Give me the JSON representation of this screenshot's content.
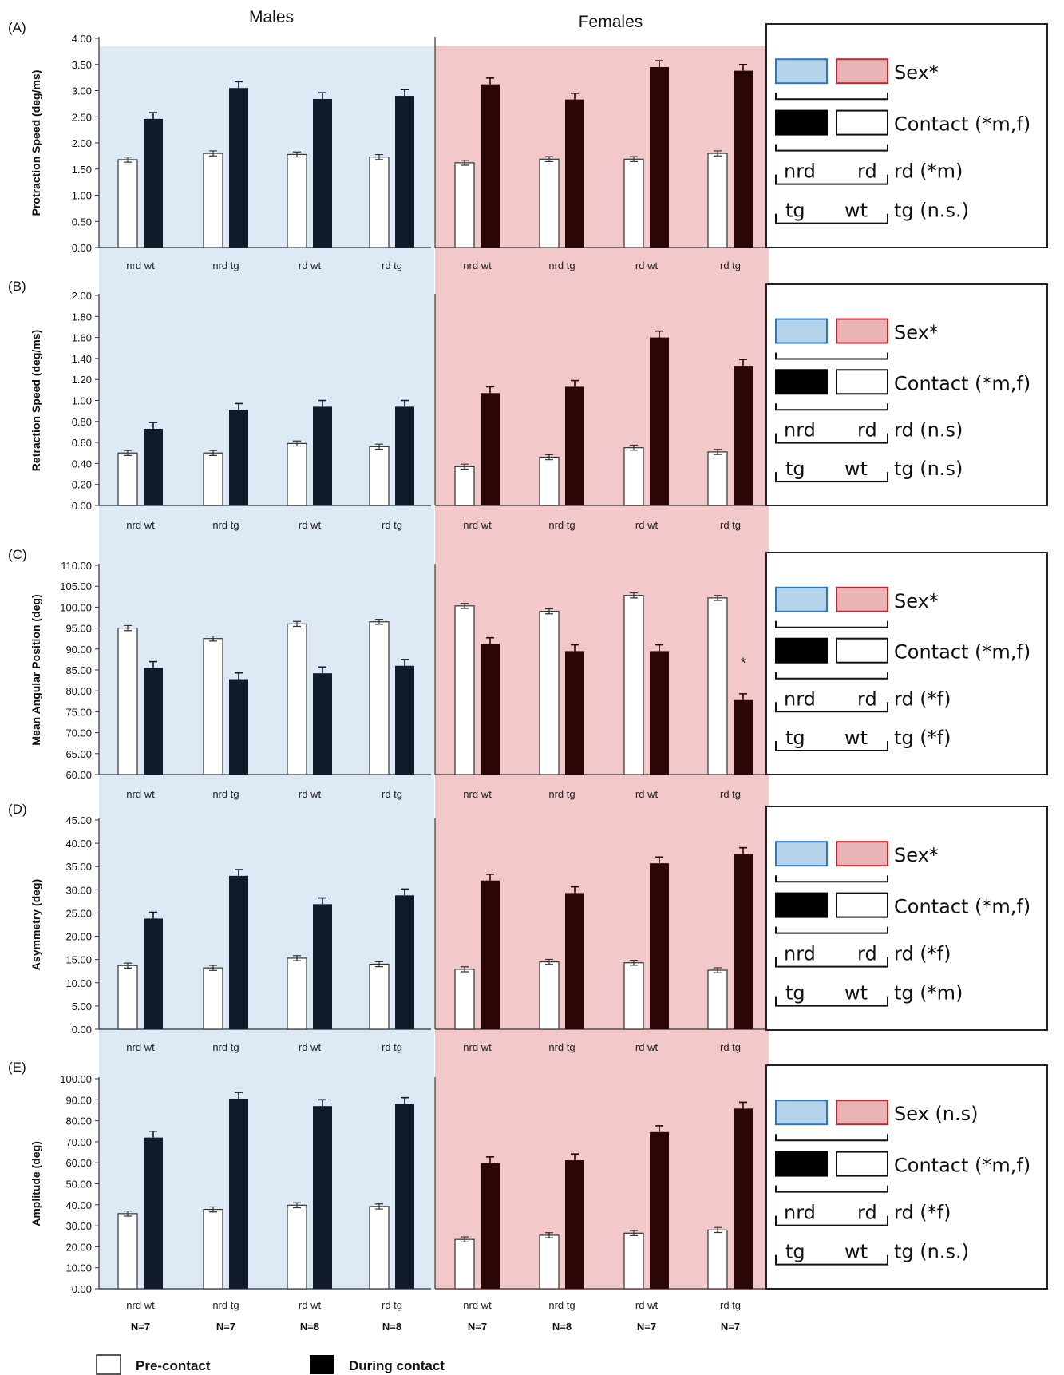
{
  "figure": {
    "column_headers": [
      "Males",
      "Females"
    ],
    "groups": [
      "nrd wt",
      "nrd tg",
      "rd wt",
      "rd tg"
    ],
    "n_males": [
      "N=7",
      "N=7",
      "N=8",
      "N=8"
    ],
    "n_females": [
      "N=7",
      "N=8",
      "N=7",
      "N=7"
    ],
    "legend": [
      "Pre-contact",
      "During contact"
    ],
    "colors": {
      "male_bg": "#dde9f5",
      "female_bg": "#f2c8ca",
      "male_bar": "#101a2b",
      "female_bar": "#2a0606",
      "sex_male_box_fill": "#b6d3ec",
      "sex_male_box_stroke": "#2b78c0",
      "sex_female_box_fill": "#eab3b6",
      "sex_female_box_stroke": "#c0262e"
    }
  },
  "chart_data": [
    {
      "panel": "(A)",
      "type": "bar",
      "ylabel": "Protraction Speed (deg/ms)",
      "ylim": [
        0,
        4
      ],
      "yticks": [
        "0.00",
        "0.50",
        "1.00",
        "1.50",
        "2.00",
        "2.50",
        "3.00",
        "3.50",
        "4.00"
      ],
      "series": [
        {
          "name": "Pre-contact",
          "males": [
            1.68,
            1.8,
            1.78,
            1.73
          ],
          "females": [
            1.62,
            1.69,
            1.69,
            1.8
          ]
        },
        {
          "name": "During contact",
          "males": [
            2.46,
            3.05,
            2.84,
            2.9
          ],
          "females": [
            3.12,
            2.83,
            3.45,
            3.38
          ]
        }
      ],
      "legend_box": {
        "sex": "Sex*",
        "contact": "Contact (*m,f)",
        "rd_left": "nrd",
        "rd_right": "rd",
        "rd_stat": "rd (*m)",
        "tg_left": "tg",
        "tg_right": "wt",
        "tg_stat": "tg (n.s.)"
      }
    },
    {
      "panel": "(B)",
      "type": "bar",
      "ylabel": "Retraction Speed (deg/ms)",
      "ylim": [
        0,
        2
      ],
      "yticks": [
        "0.00",
        "0.20",
        "0.40",
        "0.60",
        "0.80",
        "1.00",
        "1.20",
        "1.40",
        "1.60",
        "1.80",
        "2.00"
      ],
      "series": [
        {
          "name": "Pre-contact",
          "males": [
            0.5,
            0.5,
            0.59,
            0.56
          ],
          "females": [
            0.37,
            0.46,
            0.55,
            0.51
          ]
        },
        {
          "name": "During contact",
          "males": [
            0.73,
            0.91,
            0.94,
            0.94
          ],
          "females": [
            1.07,
            1.13,
            1.6,
            1.33
          ]
        }
      ],
      "legend_box": {
        "sex": "Sex*",
        "contact": "Contact (*m,f)",
        "rd_left": "nrd",
        "rd_right": "rd",
        "rd_stat": "rd (n.s)",
        "tg_left": "tg",
        "tg_right": "wt",
        "tg_stat": "tg (n.s)"
      }
    },
    {
      "panel": "(C)",
      "type": "bar",
      "ylabel": "Mean Angular Position (deg)",
      "ylim": [
        60,
        110
      ],
      "yticks": [
        "60.00",
        "65.00",
        "70.00",
        "75.00",
        "80.00",
        "85.00",
        "90.00",
        "95.00",
        "100.00",
        "105.00",
        "110.00"
      ],
      "series": [
        {
          "name": "Pre-contact",
          "males": [
            95.0,
            92.5,
            96.0,
            96.5
          ],
          "females": [
            100.3,
            99.0,
            102.8,
            102.2
          ]
        },
        {
          "name": "During contact",
          "males": [
            85.5,
            82.8,
            84.2,
            86.0
          ],
          "females": [
            91.2,
            89.5,
            89.5,
            77.8
          ]
        }
      ],
      "annotation": "*",
      "legend_box": {
        "sex": "Sex*",
        "contact": "Contact (*m,f)",
        "rd_left": "nrd",
        "rd_right": "rd",
        "rd_stat": "rd (*f)",
        "tg_left": "tg",
        "tg_right": "wt",
        "tg_stat": "tg (*f)"
      }
    },
    {
      "panel": "(D)",
      "type": "bar",
      "ylabel": "Asymmetry (deg)",
      "ylim": [
        0,
        45
      ],
      "yticks": [
        "0.00",
        "5.00",
        "10.00",
        "15.00",
        "20.00",
        "25.00",
        "30.00",
        "35.00",
        "40.00",
        "45.00"
      ],
      "series": [
        {
          "name": "Pre-contact",
          "males": [
            13.7,
            13.2,
            15.3,
            14.0
          ],
          "females": [
            12.9,
            14.5,
            14.3,
            12.7
          ]
        },
        {
          "name": "During contact",
          "males": [
            23.8,
            33.0,
            26.9,
            28.8
          ],
          "females": [
            32.0,
            29.3,
            35.7,
            37.7
          ]
        }
      ],
      "legend_box": {
        "sex": "Sex*",
        "contact": "Contact (*m,f)",
        "rd_left": "nrd",
        "rd_right": "rd",
        "rd_stat": "rd (*f)",
        "tg_left": "tg",
        "tg_right": "wt",
        "tg_stat": "tg (*m)"
      }
    },
    {
      "panel": "(E)",
      "type": "bar",
      "ylabel": "Amplitude (deg)",
      "ylim": [
        0,
        100
      ],
      "yticks": [
        "0.00",
        "10.00",
        "20.00",
        "30.00",
        "40.00",
        "50.00",
        "60.00",
        "70.00",
        "80.00",
        "90.00",
        "100.00"
      ],
      "series": [
        {
          "name": "Pre-contact",
          "males": [
            35.8,
            37.8,
            39.8,
            39.2
          ],
          "females": [
            23.5,
            25.5,
            26.5,
            28.0
          ]
        },
        {
          "name": "During contact",
          "males": [
            72.0,
            90.5,
            87.0,
            88.0
          ],
          "females": [
            59.8,
            61.2,
            74.6,
            85.8
          ]
        }
      ],
      "legend_box": {
        "sex": "Sex (n.s)",
        "contact": "Contact (*m,f)",
        "rd_left": "nrd",
        "rd_right": "rd",
        "rd_stat": "rd (*f)",
        "tg_left": "tg",
        "tg_right": "wt",
        "tg_stat": "tg (n.s.)"
      }
    }
  ]
}
